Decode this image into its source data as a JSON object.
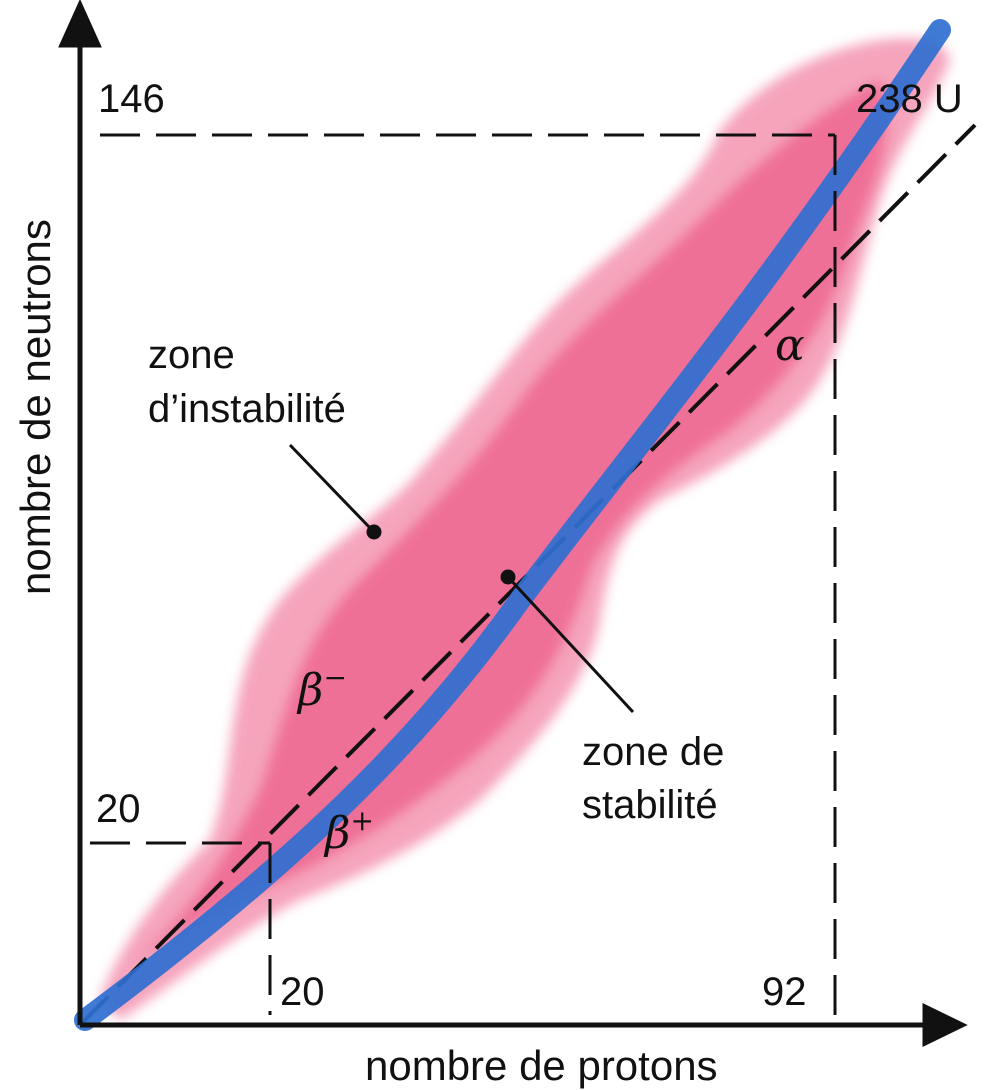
{
  "axes": {
    "x_title": "nombre de protons",
    "y_title": "nombre de neutrons"
  },
  "ticks": {
    "x_20": "20",
    "x_92": "92",
    "y_20": "20",
    "y_146": "146"
  },
  "labels": {
    "uranium": "238 U",
    "instability_line1": "zone",
    "instability_line2": "d’instabilité",
    "stability_line1": "zone de",
    "stability_line2": "stabilité",
    "beta_minus_symbol": "β",
    "beta_minus_sign": "−",
    "beta_plus_symbol": "β",
    "beta_plus_sign": "+",
    "alpha": "α"
  },
  "colors": {
    "instability_zone": "#e8306a",
    "stability_band": "#2f6fd0",
    "axis": "#111111"
  }
}
